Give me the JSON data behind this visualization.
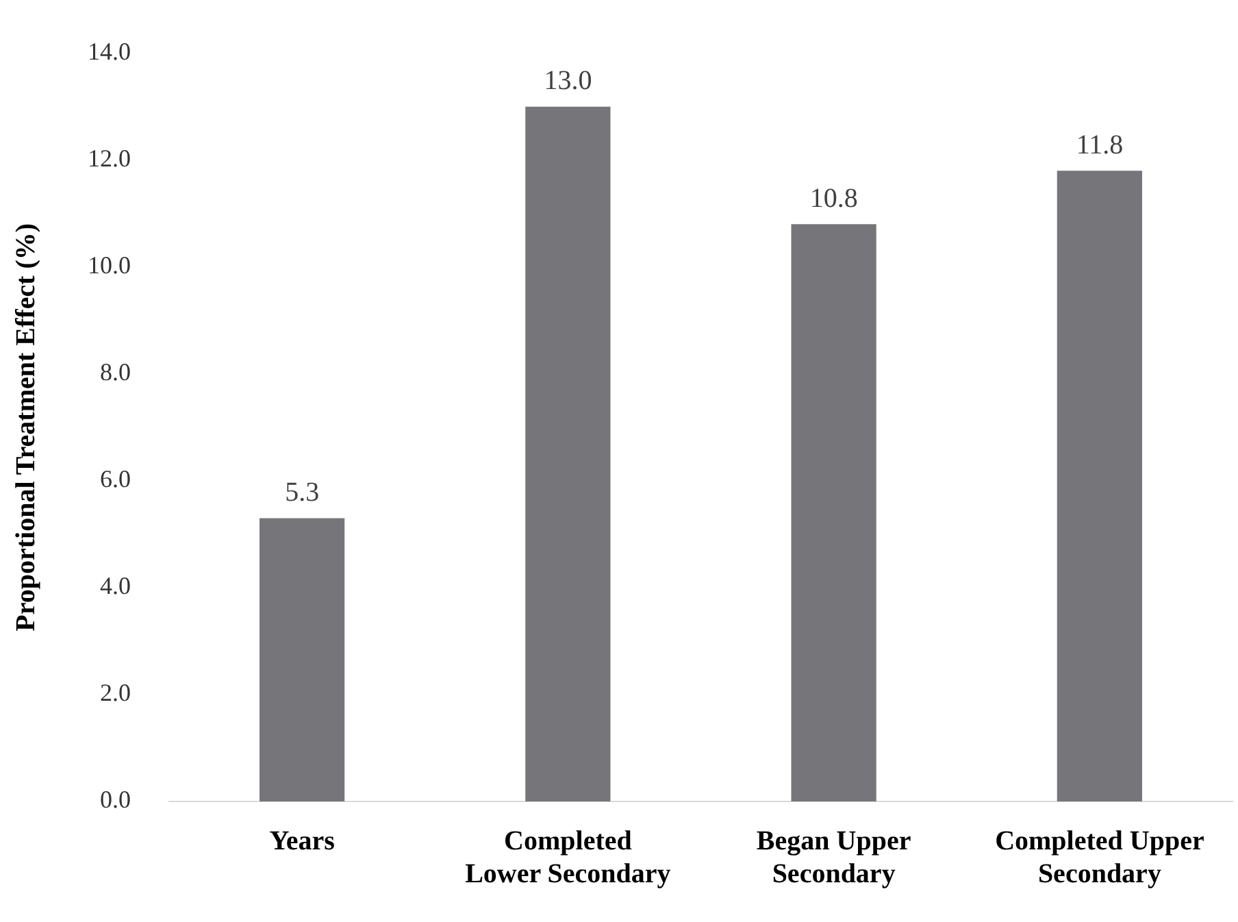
{
  "chart_data": {
    "type": "bar",
    "ylabel": "Proportional Treatment Effect (%)",
    "categories": [
      "Years",
      "Completed\nLower Secondary",
      "Began Upper\nSecondary",
      "Completed Upper\nSecondary"
    ],
    "values": [
      5.3,
      13.0,
      10.8,
      11.8
    ],
    "color": "#76767a",
    "ylim": [
      0,
      14
    ],
    "yticks": [
      {
        "value": 0,
        "label": "0.0"
      },
      {
        "value": 2,
        "label": "2.0"
      },
      {
        "value": 4,
        "label": "4.0"
      },
      {
        "value": 6,
        "label": "6.0"
      },
      {
        "value": 8,
        "label": "8.0"
      },
      {
        "value": 10,
        "label": "10.0"
      },
      {
        "value": 12,
        "label": "12.0"
      },
      {
        "value": 14,
        "label": "14.0"
      }
    ],
    "value_labels": [
      "5.3",
      "13.0",
      "10.8",
      "11.8"
    ],
    "grid": false,
    "legend": false
  }
}
